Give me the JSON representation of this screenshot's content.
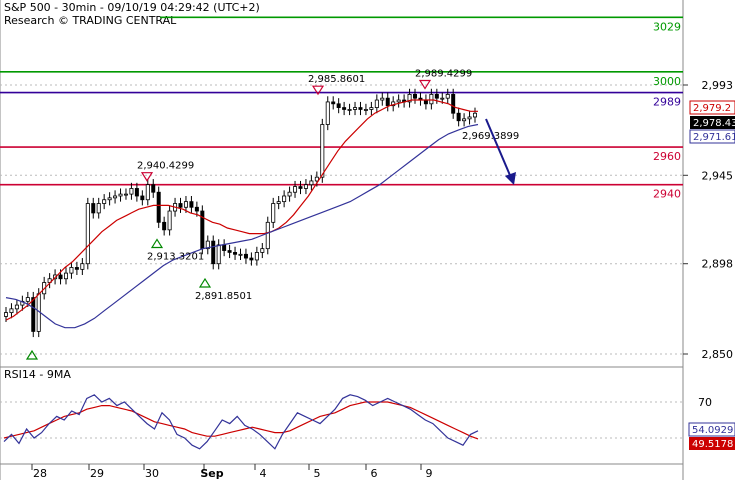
{
  "header": {
    "title": "S&P 500 - 30min - 09/10/19 04:29:42 (UTC+2)",
    "subtitle": "Research © TRADING CENTRAL"
  },
  "colors": {
    "resistance": "#009900",
    "pivot": "#330099",
    "support": "#cc0033",
    "ma_fast": "#cc0000",
    "ma_slow": "#333399",
    "candles": "#000000",
    "arrow": "#1a1a8c",
    "grid": "#bbbbbb",
    "last_bg": "#000000"
  },
  "chart_data": [
    {
      "type": "candlestick",
      "name": "price",
      "y_ticks": [
        2850,
        2898,
        2945,
        2993
      ],
      "x_labels": [
        "28",
        "29",
        "30",
        "Sep",
        "4",
        "5",
        "6",
        "9"
      ],
      "levels": [
        {
          "value": 3029,
          "label": "3029",
          "kind": "resistance"
        },
        {
          "value": 3000,
          "label": "3000",
          "kind": "resistance"
        },
        {
          "value": 2989,
          "label": "2989",
          "kind": "pivot"
        },
        {
          "value": 2960,
          "label": "2960",
          "kind": "support"
        },
        {
          "value": 2940,
          "label": "2940",
          "kind": "support"
        }
      ],
      "price_tags": [
        {
          "label": "2,979.2",
          "kind": "ma_fast"
        },
        {
          "label": "2,978.43",
          "kind": "last"
        },
        {
          "label": "2,971.61",
          "kind": "ma_slow"
        }
      ],
      "annotations": [
        {
          "label": "2,940.4299",
          "type": "high"
        },
        {
          "label": "2,913.3201",
          "type": "low"
        },
        {
          "label": "2,891.8501",
          "type": "low"
        },
        {
          "label": "2,985.8601",
          "type": "high"
        },
        {
          "label": "2,989.4299",
          "type": "high"
        },
        {
          "label": "2,969.3899",
          "type": "low"
        }
      ],
      "closes": [
        2872,
        2874,
        2876,
        2878,
        2880,
        2862,
        2882,
        2888,
        2890,
        2892,
        2890,
        2893,
        2896,
        2895,
        2898,
        2930,
        2925,
        2930,
        2932,
        2933,
        2934,
        2935,
        2935,
        2938,
        2934,
        2932,
        2940,
        2936,
        2920,
        2916,
        2926,
        2930,
        2928,
        2931,
        2928,
        2926,
        2906,
        2910,
        2898,
        2908,
        2905,
        2904,
        2903,
        2903,
        2901,
        2900,
        2904,
        2906,
        2920,
        2930,
        2931,
        2934,
        2936,
        2939,
        2938,
        2940,
        2942,
        2944,
        2972,
        2984,
        2983,
        2981,
        2980,
        2980,
        2981,
        2980,
        2980,
        2981,
        2985,
        2986,
        2982,
        2984,
        2985,
        2984,
        2988,
        2986,
        2985,
        2983,
        2988,
        2986,
        2986,
        2988,
        2978,
        2974,
        2975,
        2976,
        2978
      ],
      "ma_fast": [
        2868,
        2870,
        2873,
        2876,
        2880,
        2884,
        2888,
        2892,
        2896,
        2899,
        2903,
        2907,
        2911,
        2915,
        2918,
        2921,
        2923,
        2925,
        2927,
        2928,
        2929,
        2929,
        2929,
        2928,
        2927,
        2925,
        2924,
        2922,
        2920,
        2919,
        2917,
        2916,
        2915,
        2914,
        2914,
        2914,
        2915,
        2917,
        2920,
        2924,
        2929,
        2934,
        2940,
        2946,
        2952,
        2958,
        2963,
        2967,
        2971,
        2975,
        2978,
        2980,
        2982,
        2983,
        2984,
        2985,
        2985,
        2985,
        2985,
        2984,
        2983,
        2981,
        2980,
        2979,
        2979
      ],
      "ma_slow": [
        2880,
        2879,
        2877,
        2874,
        2870,
        2866,
        2864,
        2864,
        2866,
        2869,
        2873,
        2877,
        2881,
        2885,
        2889,
        2893,
        2897,
        2900,
        2902,
        2904,
        2906,
        2907,
        2908,
        2909,
        2910,
        2911,
        2913,
        2915,
        2917,
        2919,
        2921,
        2923,
        2925,
        2927,
        2929,
        2931,
        2934,
        2937,
        2940,
        2944,
        2948,
        2952,
        2956,
        2960,
        2964,
        2967,
        2969,
        2971,
        2972
      ]
    },
    {
      "type": "line",
      "name": "RSI14 - 9MA",
      "title": "RSI14 - 9MA",
      "y_ticks": [
        70
      ],
      "series": [
        {
          "name": "RSI14",
          "last_label": "54.0929"
        },
        {
          "name": "9MA",
          "last_label": "49.5178"
        }
      ],
      "rsi": [
        48,
        52,
        47,
        55,
        50,
        53,
        58,
        62,
        60,
        65,
        63,
        72,
        74,
        70,
        72,
        68,
        70,
        66,
        62,
        58,
        55,
        64,
        60,
        52,
        50,
        46,
        44,
        48,
        54,
        60,
        58,
        62,
        57,
        55,
        52,
        48,
        44,
        52,
        58,
        64,
        62,
        60,
        58,
        62,
        66,
        72,
        74,
        73,
        71,
        68,
        70,
        72,
        70,
        68,
        66,
        63,
        60,
        58,
        54,
        50,
        48,
        46,
        52,
        54
      ],
      "rsi_ma": [
        50,
        51,
        52,
        53,
        54,
        56,
        58,
        60,
        62,
        63,
        64,
        66,
        67,
        68,
        68,
        67,
        66,
        65,
        63,
        61,
        59,
        58,
        57,
        56,
        55,
        53,
        52,
        51,
        51,
        52,
        53,
        54,
        55,
        56,
        55,
        54,
        53,
        53,
        54,
        56,
        58,
        60,
        62,
        63,
        64,
        66,
        68,
        69,
        70,
        70,
        70,
        70,
        69,
        68,
        67,
        65,
        63,
        61,
        59,
        57,
        55,
        53,
        51,
        49.5
      ]
    }
  ]
}
